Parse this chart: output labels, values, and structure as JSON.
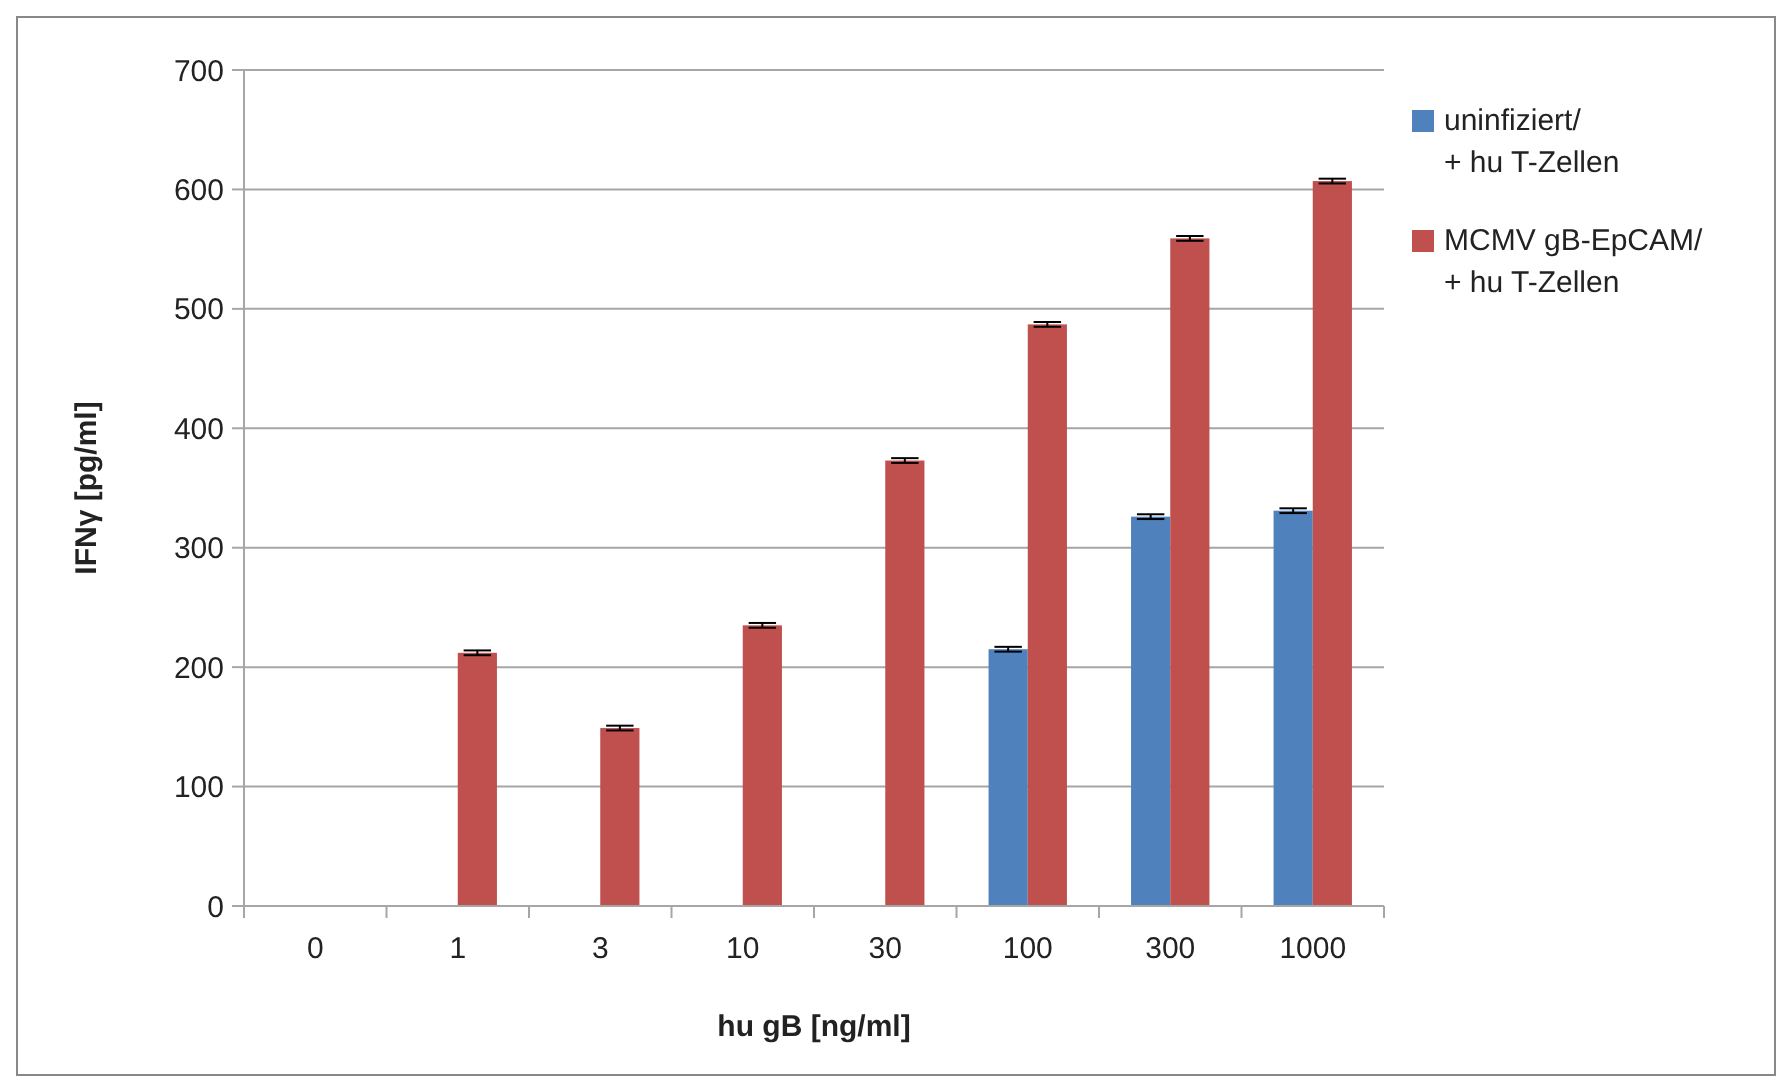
{
  "chart_data": {
    "type": "bar",
    "xlabel": "hu gB [ng/ml]",
    "ylabel": "IFNγ [pg/ml]",
    "categories": [
      "0",
      "1",
      "3",
      "10",
      "30",
      "100",
      "300",
      "1000"
    ],
    "series": [
      {
        "name": "uninfiziert/\n+ hu T-Zellen",
        "color": "#4f81bd",
        "values": [
          0,
          0,
          0,
          0,
          0,
          215,
          326,
          331
        ],
        "errors": [
          null,
          null,
          null,
          null,
          null,
          2,
          2,
          2
        ]
      },
      {
        "name": "MCMV gB-EpCAM/\n+ hu T-Zellen",
        "color": "#c0504d",
        "values": [
          0,
          212,
          149,
          235,
          373,
          487,
          559,
          607
        ],
        "errors": [
          null,
          2,
          2,
          2,
          2,
          2,
          2,
          2
        ]
      }
    ],
    "ylim": [
      0,
      700
    ],
    "yticks": [
      0,
      100,
      200,
      300,
      400,
      500,
      600,
      700
    ],
    "grid": "y",
    "legend": "right"
  }
}
